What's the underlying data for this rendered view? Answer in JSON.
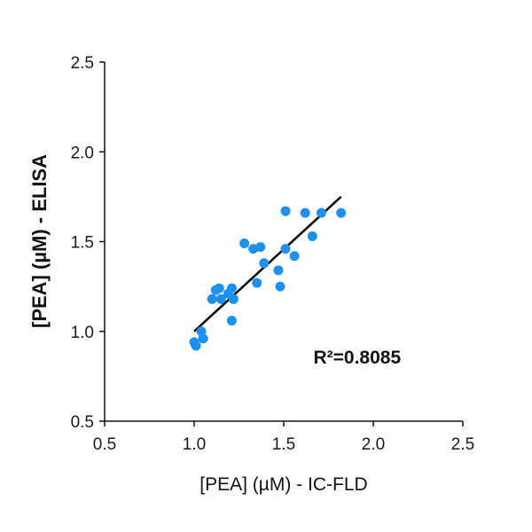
{
  "chart_data": {
    "type": "scatter",
    "title": "",
    "xlabel": "[PEA] (µM) - IC-FLD",
    "ylabel": "[PEA] (µM) - ELISA",
    "xlim": [
      0.5,
      2.5
    ],
    "ylim": [
      0.5,
      2.5
    ],
    "x_ticks": [
      "0.5",
      "1.0",
      "1.5",
      "2.0",
      "2.5"
    ],
    "y_ticks": [
      "0.5",
      "1.0",
      "1.5",
      "2.0",
      "2.5"
    ],
    "grid": false,
    "legend": "none",
    "point_color": "#1e90ef",
    "line_color": "#000000",
    "series": [
      {
        "points": [
          {
            "x": 1.0,
            "y": 0.94
          },
          {
            "x": 1.01,
            "y": 0.92
          },
          {
            "x": 1.04,
            "y": 1.0
          },
          {
            "x": 1.05,
            "y": 0.96
          },
          {
            "x": 1.1,
            "y": 1.18
          },
          {
            "x": 1.12,
            "y": 1.23
          },
          {
            "x": 1.14,
            "y": 1.24
          },
          {
            "x": 1.15,
            "y": 1.18
          },
          {
            "x": 1.19,
            "y": 1.21
          },
          {
            "x": 1.21,
            "y": 1.24
          },
          {
            "x": 1.22,
            "y": 1.18
          },
          {
            "x": 1.21,
            "y": 1.06
          },
          {
            "x": 1.28,
            "y": 1.49
          },
          {
            "x": 1.33,
            "y": 1.46
          },
          {
            "x": 1.35,
            "y": 1.27
          },
          {
            "x": 1.37,
            "y": 1.47
          },
          {
            "x": 1.39,
            "y": 1.38
          },
          {
            "x": 1.47,
            "y": 1.34
          },
          {
            "x": 1.48,
            "y": 1.25
          },
          {
            "x": 1.51,
            "y": 1.67
          },
          {
            "x": 1.51,
            "y": 1.46
          },
          {
            "x": 1.56,
            "y": 1.42
          },
          {
            "x": 1.62,
            "y": 1.66
          },
          {
            "x": 1.66,
            "y": 1.53
          },
          {
            "x": 1.71,
            "y": 1.66
          },
          {
            "x": 1.82,
            "y": 1.66
          }
        ]
      }
    ],
    "fit_line": {
      "x": [
        1.0,
        1.82
      ],
      "y": [
        1.0,
        1.75
      ]
    },
    "annotation": {
      "text": "R²=0.8085",
      "x": 1.91,
      "y": 0.82
    }
  }
}
